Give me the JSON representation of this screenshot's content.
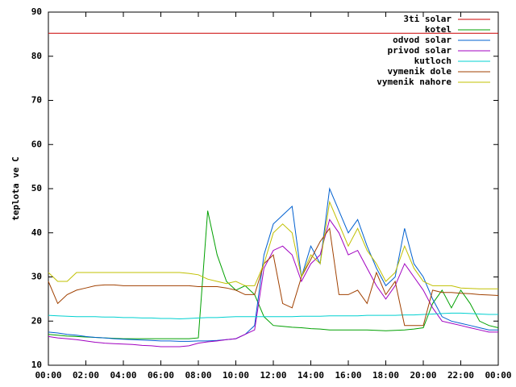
{
  "chart_data": {
    "type": "line",
    "y_label": "teplota ve C",
    "legend": "top-right",
    "grid": false,
    "xlim": [
      0,
      24
    ],
    "xticks": [
      {
        "value": 0,
        "label": "00:00"
      },
      {
        "value": 2,
        "label": "02:00"
      },
      {
        "value": 4,
        "label": "04:00"
      },
      {
        "value": 6,
        "label": "06:00"
      },
      {
        "value": 8,
        "label": "08:00"
      },
      {
        "value": 10,
        "label": "10:00"
      },
      {
        "value": 12,
        "label": "12:00"
      },
      {
        "value": 14,
        "label": "14:00"
      },
      {
        "value": 16,
        "label": "16:00"
      },
      {
        "value": 18,
        "label": "18:00"
      },
      {
        "value": 20,
        "label": "20:00"
      },
      {
        "value": 22,
        "label": "22:00"
      },
      {
        "value": 24,
        "label": "00:00"
      }
    ],
    "ylim": [
      10,
      90
    ],
    "yticks": [
      10,
      20,
      30,
      40,
      50,
      60,
      70,
      80,
      90
    ],
    "x": [
      0,
      0.5,
      1,
      1.5,
      2,
      2.5,
      3,
      3.5,
      4,
      4.5,
      5,
      5.5,
      6,
      6.5,
      7,
      7.5,
      8,
      8.5,
      9,
      9.5,
      10,
      10.5,
      11,
      11.5,
      12,
      12.5,
      13,
      13.5,
      14,
      14.5,
      15,
      15.5,
      16,
      16.5,
      17,
      17.5,
      18,
      18.5,
      19,
      19.5,
      20,
      20.5,
      21,
      21.5,
      22,
      22.5,
      23,
      23.5,
      24
    ],
    "series": [
      {
        "name": "3ti solar",
        "color": "#cc0000",
        "values": [
          85.2,
          85.2,
          85.2,
          85.2,
          85.2,
          85.2,
          85.2,
          85.2,
          85.2,
          85.2,
          85.2,
          85.2,
          85.2,
          85.2,
          85.2,
          85.2,
          85.2,
          85.2,
          85.2,
          85.2,
          85.2,
          85.2,
          85.2,
          85.2,
          85.2,
          85.2,
          85.2,
          85.2,
          85.2,
          85.2,
          85.2,
          85.2,
          85.2,
          85.2,
          85.2,
          85.2,
          85.2,
          85.2,
          85.2,
          85.2,
          85.2,
          85.2,
          85.2,
          85.2,
          85.2,
          85.2,
          85.2,
          85.2,
          85.2
        ]
      },
      {
        "name": "kotel",
        "color": "#00a000",
        "values": [
          17,
          16.8,
          16.6,
          16.5,
          16.4,
          16.3,
          16.2,
          16.1,
          16,
          16,
          16,
          16,
          16,
          16,
          16,
          16,
          16.2,
          45,
          35,
          29,
          27,
          28,
          26,
          21,
          19,
          18.8,
          18.6,
          18.5,
          18.3,
          18.2,
          18,
          18,
          18,
          18,
          18,
          17.9,
          17.8,
          17.9,
          18,
          18.2,
          18.5,
          24,
          27,
          23,
          27,
          24,
          20,
          19,
          18.5
        ]
      },
      {
        "name": "odvod solar",
        "color": "#0060d0",
        "values": [
          17.5,
          17.3,
          17,
          16.8,
          16.5,
          16.3,
          16.2,
          16,
          15.9,
          15.8,
          15.7,
          15.6,
          15.5,
          15.5,
          15.4,
          15.4,
          15.5,
          15.5,
          15.6,
          15.8,
          16,
          17,
          19,
          35,
          42,
          44,
          46,
          30,
          37,
          33,
          50,
          45,
          40,
          43,
          37,
          32,
          28,
          30,
          41,
          33,
          30,
          25,
          21,
          20,
          19.5,
          19,
          18.5,
          18,
          18
        ]
      },
      {
        "name": "privod solar",
        "color": "#a000c0",
        "values": [
          16.5,
          16.2,
          16,
          15.8,
          15.5,
          15.2,
          15,
          14.9,
          14.8,
          14.7,
          14.5,
          14.4,
          14.2,
          14.2,
          14.2,
          14.4,
          15,
          15.3,
          15.5,
          15.8,
          16,
          17,
          18,
          32,
          36,
          37,
          35,
          29,
          33,
          35,
          43,
          40,
          35,
          36,
          32,
          28,
          25,
          28,
          33,
          30,
          27,
          23,
          20,
          19.5,
          19,
          18.5,
          18,
          17.5,
          17.5
        ]
      },
      {
        "name": "kutloch",
        "color": "#00d0d0",
        "values": [
          21.3,
          21.2,
          21.1,
          21,
          21,
          21,
          20.9,
          20.9,
          20.8,
          20.8,
          20.7,
          20.7,
          20.6,
          20.6,
          20.5,
          20.6,
          20.7,
          20.8,
          20.8,
          20.9,
          21,
          21,
          21,
          21,
          21,
          21,
          21,
          21.1,
          21.1,
          21.1,
          21.2,
          21.2,
          21.2,
          21.2,
          21.3,
          21.3,
          21.3,
          21.3,
          21.4,
          21.4,
          21.5,
          21.6,
          21.7,
          21.8,
          21.8,
          21.7,
          21.6,
          21.5,
          21.5
        ]
      },
      {
        "name": "vymenik dole",
        "color": "#a04000",
        "values": [
          29,
          24,
          26,
          27,
          27.5,
          28,
          28.2,
          28.2,
          28,
          28,
          28,
          28,
          28,
          28,
          28,
          28,
          27.8,
          27.8,
          27.8,
          27.5,
          27,
          26,
          26,
          33,
          35,
          24,
          23,
          30,
          34,
          38,
          41,
          26,
          26,
          27,
          24,
          31,
          26,
          29,
          19,
          19,
          19,
          27,
          26.5,
          26.5,
          26.3,
          26.2,
          26,
          25.9,
          25.8
        ]
      },
      {
        "name": "vymenik nahore",
        "color": "#c0c000",
        "values": [
          31,
          29,
          29,
          31,
          31,
          31,
          31,
          31,
          31,
          31,
          31,
          31,
          31,
          31,
          31,
          30.8,
          30.5,
          29.5,
          29,
          28.5,
          29,
          28,
          28,
          33,
          40,
          42,
          40,
          30,
          35,
          33,
          47,
          42,
          37,
          41,
          36,
          33,
          29,
          31,
          37,
          32,
          29,
          28,
          28,
          28,
          27.5,
          27.4,
          27.3,
          27.3,
          27.3
        ]
      }
    ]
  }
}
